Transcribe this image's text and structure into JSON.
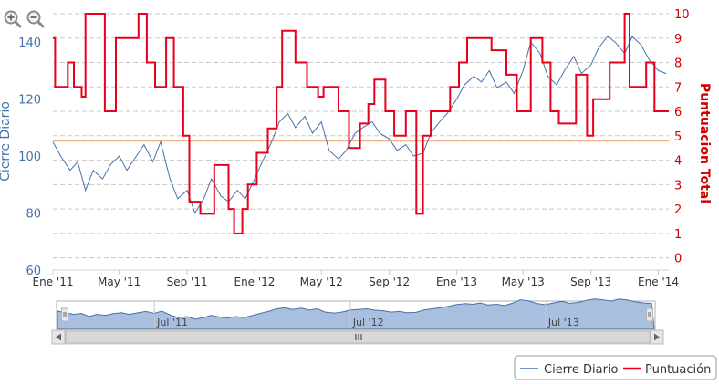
{
  "chart_data": {
    "type": "line",
    "title": "",
    "x_range": [
      "2011-01-01",
      "2014-01-20"
    ],
    "x_tick_labels": [
      {
        "date": "2011-01-01",
        "label": "Ene '11"
      },
      {
        "date": "2011-05-01",
        "label": "May '11"
      },
      {
        "date": "2011-09-01",
        "label": "Sep '11"
      },
      {
        "date": "2012-01-01",
        "label": "Ene '12"
      },
      {
        "date": "2012-05-01",
        "label": "May '12"
      },
      {
        "date": "2012-09-01",
        "label": "Sep '12"
      },
      {
        "date": "2013-01-01",
        "label": "Ene '13"
      },
      {
        "date": "2013-05-01",
        "label": "May '13"
      },
      {
        "date": "2013-09-01",
        "label": "Sep '13"
      },
      {
        "date": "2014-01-01",
        "label": "Ene '14"
      }
    ],
    "y_left": {
      "label": "Cierre Diario",
      "range": [
        60,
        150
      ],
      "ticks": [
        60,
        80,
        100,
        120,
        140
      ],
      "color": "#4572a7"
    },
    "y_right": {
      "label": "Puntuacion Total",
      "range": [
        -0.5,
        10
      ],
      "ticks": [
        0,
        1,
        2,
        3,
        4,
        5,
        6,
        7,
        8,
        9,
        10
      ],
      "color": "#d10000"
    },
    "grid": "dashed horizontal",
    "reference_line": {
      "axis": "right",
      "value": 4.8,
      "color": "#f4b183"
    },
    "series": [
      {
        "name": "Cierre Diario",
        "axis": "left",
        "color": "#4572a7",
        "points": [
          [
            "2011-01-01",
            105
          ],
          [
            "2011-01-15",
            100
          ],
          [
            "2011-02-01",
            95
          ],
          [
            "2011-02-15",
            98
          ],
          [
            "2011-03-01",
            88
          ],
          [
            "2011-03-15",
            95
          ],
          [
            "2011-04-01",
            92
          ],
          [
            "2011-04-15",
            97
          ],
          [
            "2011-05-01",
            100
          ],
          [
            "2011-05-15",
            95
          ],
          [
            "2011-06-01",
            100
          ],
          [
            "2011-06-15",
            104
          ],
          [
            "2011-07-01",
            98
          ],
          [
            "2011-07-15",
            105
          ],
          [
            "2011-08-01",
            92
          ],
          [
            "2011-08-15",
            85
          ],
          [
            "2011-09-01",
            88
          ],
          [
            "2011-09-15",
            80
          ],
          [
            "2011-10-01",
            85
          ],
          [
            "2011-10-15",
            92
          ],
          [
            "2011-11-01",
            86
          ],
          [
            "2011-11-15",
            84
          ],
          [
            "2011-12-01",
            88
          ],
          [
            "2011-12-15",
            85
          ],
          [
            "2012-01-01",
            92
          ],
          [
            "2012-01-15",
            98
          ],
          [
            "2012-02-01",
            105
          ],
          [
            "2012-02-15",
            112
          ],
          [
            "2012-03-01",
            115
          ],
          [
            "2012-03-15",
            110
          ],
          [
            "2012-04-01",
            114
          ],
          [
            "2012-04-15",
            108
          ],
          [
            "2012-05-01",
            112
          ],
          [
            "2012-05-15",
            102
          ],
          [
            "2012-06-01",
            99
          ],
          [
            "2012-06-15",
            102
          ],
          [
            "2012-07-01",
            108
          ],
          [
            "2012-07-15",
            110
          ],
          [
            "2012-08-01",
            112
          ],
          [
            "2012-08-15",
            108
          ],
          [
            "2012-09-01",
            106
          ],
          [
            "2012-09-15",
            102
          ],
          [
            "2012-10-01",
            104
          ],
          [
            "2012-10-15",
            100
          ],
          [
            "2012-11-01",
            101
          ],
          [
            "2012-11-15",
            108
          ],
          [
            "2012-12-01",
            112
          ],
          [
            "2012-12-15",
            115
          ],
          [
            "2013-01-01",
            120
          ],
          [
            "2013-01-15",
            125
          ],
          [
            "2013-02-01",
            128
          ],
          [
            "2013-02-15",
            126
          ],
          [
            "2013-03-01",
            130
          ],
          [
            "2013-03-15",
            124
          ],
          [
            "2013-04-01",
            126
          ],
          [
            "2013-04-15",
            122
          ],
          [
            "2013-05-01",
            130
          ],
          [
            "2013-05-15",
            140
          ],
          [
            "2013-06-01",
            136
          ],
          [
            "2013-06-15",
            128
          ],
          [
            "2013-07-01",
            125
          ],
          [
            "2013-07-15",
            130
          ],
          [
            "2013-08-01",
            135
          ],
          [
            "2013-08-15",
            129
          ],
          [
            "2013-09-01",
            132
          ],
          [
            "2013-09-15",
            138
          ],
          [
            "2013-10-01",
            142
          ],
          [
            "2013-10-15",
            140
          ],
          [
            "2013-11-01",
            136
          ],
          [
            "2013-11-15",
            142
          ],
          [
            "2013-12-01",
            139
          ],
          [
            "2013-12-15",
            134
          ],
          [
            "2014-01-01",
            130
          ],
          [
            "2014-01-15",
            129
          ]
        ]
      },
      {
        "name": "Puntuación",
        "axis": "right",
        "color": "#e8001c",
        "points": [
          [
            "2011-01-01",
            9
          ],
          [
            "2011-01-05",
            7
          ],
          [
            "2011-01-28",
            8
          ],
          [
            "2011-02-08",
            7
          ],
          [
            "2011-02-22",
            6.6
          ],
          [
            "2011-03-01",
            10
          ],
          [
            "2011-04-05",
            6
          ],
          [
            "2011-04-25",
            9
          ],
          [
            "2011-06-05",
            10
          ],
          [
            "2011-06-20",
            8
          ],
          [
            "2011-07-05",
            7
          ],
          [
            "2011-07-25",
            9
          ],
          [
            "2011-08-08",
            7
          ],
          [
            "2011-08-25",
            5
          ],
          [
            "2011-09-05",
            2.3
          ],
          [
            "2011-09-25",
            1.8
          ],
          [
            "2011-10-20",
            3.8
          ],
          [
            "2011-11-15",
            2
          ],
          [
            "2011-11-25",
            1
          ],
          [
            "2011-12-10",
            2
          ],
          [
            "2011-12-20",
            3
          ],
          [
            "2012-01-05",
            4.3
          ],
          [
            "2012-01-25",
            5.3
          ],
          [
            "2012-02-10",
            7
          ],
          [
            "2012-02-20",
            9.3
          ],
          [
            "2012-03-15",
            8
          ],
          [
            "2012-04-05",
            7
          ],
          [
            "2012-04-25",
            6.6
          ],
          [
            "2012-05-05",
            7
          ],
          [
            "2012-06-01",
            6
          ],
          [
            "2012-06-20",
            4.5
          ],
          [
            "2012-07-10",
            5.5
          ],
          [
            "2012-07-25",
            6.3
          ],
          [
            "2012-08-05",
            7.3
          ],
          [
            "2012-08-25",
            6
          ],
          [
            "2012-09-10",
            5
          ],
          [
            "2012-10-01",
            6
          ],
          [
            "2012-10-20",
            1.8
          ],
          [
            "2012-11-01",
            5
          ],
          [
            "2012-11-15",
            6
          ],
          [
            "2012-12-20",
            7
          ],
          [
            "2013-01-05",
            8
          ],
          [
            "2013-01-20",
            9
          ],
          [
            "2013-03-05",
            8.5
          ],
          [
            "2013-04-01",
            7.5
          ],
          [
            "2013-04-20",
            6
          ],
          [
            "2013-05-15",
            9
          ],
          [
            "2013-06-05",
            8
          ],
          [
            "2013-06-20",
            6
          ],
          [
            "2013-07-05",
            5.5
          ],
          [
            "2013-08-05",
            7.5
          ],
          [
            "2013-08-25",
            5
          ],
          [
            "2013-09-05",
            6.5
          ],
          [
            "2013-10-05",
            8
          ],
          [
            "2013-11-01",
            10
          ],
          [
            "2013-11-10",
            7
          ],
          [
            "2013-12-10",
            8
          ],
          [
            "2013-12-25",
            6
          ],
          [
            "2014-01-15",
            6
          ]
        ]
      }
    ],
    "navigator": {
      "labels": [
        {
          "date": "2011-07-01",
          "label": "Jul '11"
        },
        {
          "date": "2012-07-01",
          "label": "Jul '12"
        },
        {
          "date": "2013-07-01",
          "label": "Jul '13"
        }
      ]
    },
    "legend": {
      "position": "bottom-right",
      "items": [
        {
          "label": "Cierre Diario",
          "color": "#4572a7"
        },
        {
          "label": "Puntuación",
          "color": "#e8001c"
        }
      ]
    }
  },
  "controls": {
    "zoom_in_icon": "magnifier-plus-icon",
    "zoom_out_icon": "magnifier-minus-icon",
    "scroll_left_icon": "triangle-left-icon",
    "scroll_right_icon": "triangle-right-icon",
    "scrollbar_grip_icon": "grip-lines-icon"
  }
}
